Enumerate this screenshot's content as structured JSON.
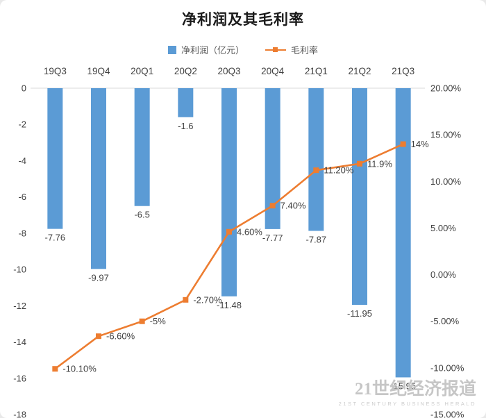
{
  "title": "净利润及其毛利率",
  "legend": [
    {
      "name": "净利润（亿元）",
      "type": "bar",
      "color": "#5B9BD5"
    },
    {
      "name": "毛利率",
      "type": "line",
      "color": "#ED7D31"
    }
  ],
  "watermark": {
    "text": "21世纪经济报道",
    "subtext": "21ST CENTURY BUSINESS HERALD"
  },
  "chart_data": {
    "type": "combo",
    "title": "净利润及其毛利率",
    "categories": [
      "19Q3",
      "19Q4",
      "20Q1",
      "20Q2",
      "20Q3",
      "20Q4",
      "21Q1",
      "21Q2",
      "21Q3"
    ],
    "series": [
      {
        "name": "净利润（亿元）",
        "type": "bar",
        "axis": "left",
        "color": "#5B9BD5",
        "values": [
          -7.76,
          -9.97,
          -6.5,
          -1.6,
          -11.48,
          -7.77,
          -7.87,
          -11.95,
          -15.95
        ],
        "labels": [
          "-7.76",
          "-9.97",
          "-6.5",
          "-1.6",
          "-11.48",
          "-7.77",
          "-7.87",
          "-11.95",
          "-15.95"
        ]
      },
      {
        "name": "毛利率",
        "type": "line",
        "axis": "right",
        "color": "#ED7D31",
        "values": [
          -10.1,
          -6.6,
          -5,
          -2.7,
          4.6,
          7.4,
          11.2,
          11.9,
          14
        ],
        "labels": [
          "-10.10%",
          "-6.60%",
          "-5%",
          "-2.70%",
          "4.60%",
          "7.40%",
          "11.20%",
          "11.9%",
          "14%"
        ]
      }
    ],
    "left_axis": {
      "min": -18,
      "max": 0,
      "step": 2,
      "ticks": [
        "0",
        "-2",
        "-4",
        "-6",
        "-8",
        "-10",
        "-12",
        "-14",
        "-16",
        "-18"
      ]
    },
    "right_axis": {
      "min": -15,
      "max": 20,
      "step": 5,
      "ticks": [
        "20.00%",
        "15.00%",
        "10.00%",
        "5.00%",
        "0.00%",
        "-5.00%",
        "-10.00%",
        "-15.00%"
      ]
    },
    "legend_position": "top",
    "grid": false,
    "text_color": "#404040"
  }
}
